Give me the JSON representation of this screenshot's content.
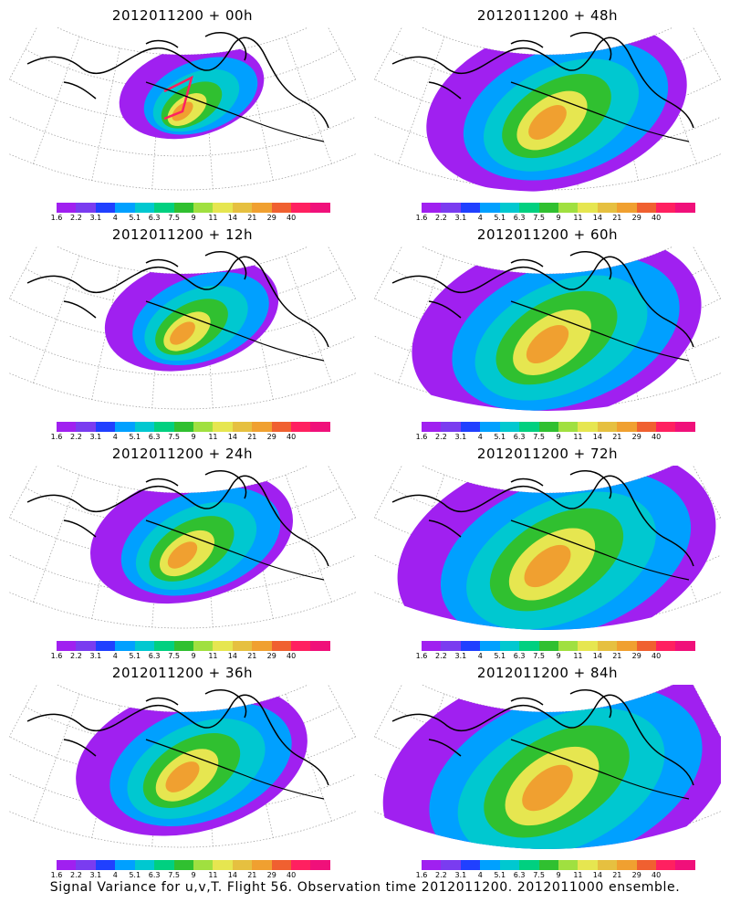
{
  "panels": [
    {
      "title": "2012011200 + 00h",
      "stage": 0
    },
    {
      "title": "2012011200 + 48h",
      "stage": 4
    },
    {
      "title": "2012011200 + 12h",
      "stage": 1
    },
    {
      "title": "2012011200 + 60h",
      "stage": 5
    },
    {
      "title": "2012011200 + 24h",
      "stage": 2
    },
    {
      "title": "2012011200 + 72h",
      "stage": 6
    },
    {
      "title": "2012011200 + 36h",
      "stage": 3
    },
    {
      "title": "2012011200 + 84h",
      "stage": 7
    }
  ],
  "colorbar": {
    "ticks": [
      "1.6",
      "2.2",
      "3.1",
      "4",
      "5.1",
      "6.3",
      "7.5",
      "9",
      "11",
      "14",
      "21",
      "29",
      "40"
    ],
    "colors": [
      "#a020f0",
      "#7a3cf0",
      "#2040ff",
      "#00a0ff",
      "#00c8d0",
      "#00d080",
      "#30c030",
      "#a0e040",
      "#e6e650",
      "#e6c040",
      "#f0a030",
      "#f06030",
      "#ff2060",
      "#f0107a"
    ]
  },
  "caption": "Signal Variance for u,v,T. Flight 56. Observation time 2012011200. 2012011000 ensemble."
}
